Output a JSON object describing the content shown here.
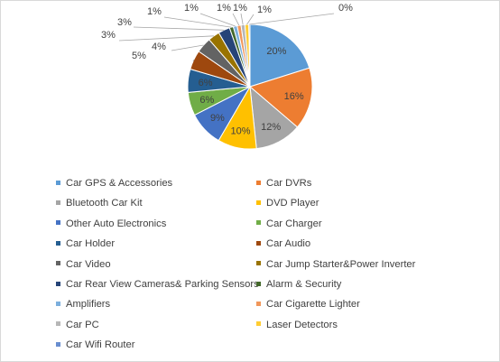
{
  "chart_data": {
    "type": "pie",
    "title": "",
    "slices": [
      {
        "name": "Car GPS & Accessories",
        "label": "20%",
        "value": 20,
        "color": "#5b9bd5"
      },
      {
        "name": "Car DVRs",
        "label": "16%",
        "value": 16,
        "color": "#ed7d31"
      },
      {
        "name": "Bluetooth Car Kit",
        "label": "12%",
        "value": 12,
        "color": "#a5a5a5"
      },
      {
        "name": "DVD Player",
        "label": "10%",
        "value": 10,
        "color": "#ffc000"
      },
      {
        "name": "Other Auto Electronics",
        "label": "9%",
        "value": 9,
        "color": "#4472c4"
      },
      {
        "name": "Car Charger",
        "label": "6%",
        "value": 6,
        "color": "#70ad47"
      },
      {
        "name": "Car Holder",
        "label": "6%",
        "value": 6,
        "color": "#255e91"
      },
      {
        "name": "Car Audio",
        "label": "5%",
        "value": 5,
        "color": "#9e480e"
      },
      {
        "name": "Car Video",
        "label": "4%",
        "value": 4,
        "color": "#636363"
      },
      {
        "name": "Car Jump Starter&Power Inverter",
        "label": "3%",
        "value": 3,
        "color": "#997300"
      },
      {
        "name": "Car Rear View Cameras& Parking Sensors",
        "label": "3%",
        "value": 3,
        "color": "#264478"
      },
      {
        "name": "Alarm & Security",
        "label": "1%",
        "value": 1,
        "color": "#43682b"
      },
      {
        "name": "Amplifiers",
        "label": "1%",
        "value": 1,
        "color": "#7cafdd"
      },
      {
        "name": "Car Cigarette Lighter",
        "label": "1%",
        "value": 1,
        "color": "#f1975a"
      },
      {
        "name": "Car PC",
        "label": "1%",
        "value": 1,
        "color": "#b7b7b7"
      },
      {
        "name": "Laser Detectors",
        "label": "1%",
        "value": 1,
        "color": "#ffcd33"
      },
      {
        "name": "Car Wifi Router",
        "label": "0%",
        "value": 0.3,
        "color": "#698ed0"
      }
    ],
    "legend_position": "bottom"
  }
}
